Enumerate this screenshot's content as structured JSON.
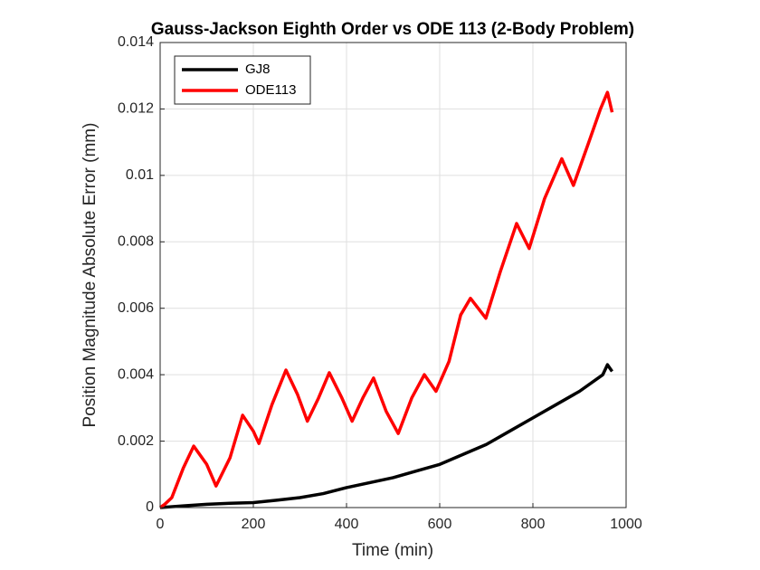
{
  "chart_data": {
    "type": "line",
    "title": "Gauss-Jackson Eighth Order vs ODE 113 (2-Body Problem)",
    "x_label": "Time (min)",
    "y_label": "Position Magnitude Absolute Error (mm)",
    "xlim": [
      0,
      1000
    ],
    "xticks": [
      0,
      200,
      400,
      600,
      800,
      1000
    ],
    "ylim": [
      0,
      0.014
    ],
    "yticks": [
      0,
      0.002,
      0.004,
      0.006,
      0.008,
      0.01,
      0.012,
      0.014
    ],
    "grid": true,
    "legend": "top-left",
    "series": [
      {
        "name": "GJ8",
        "color": "#000000",
        "x": [
          0,
          50,
          100,
          150,
          200,
          250,
          300,
          350,
          400,
          450,
          500,
          550,
          600,
          650,
          700,
          750,
          800,
          850,
          900,
          950,
          960,
          970
        ],
        "values": [
          0,
          5e-05,
          0.0001,
          0.00013,
          0.00015,
          0.00022,
          0.0003,
          0.00042,
          0.0006,
          0.00075,
          0.0009,
          0.0011,
          0.0013,
          0.0016,
          0.0019,
          0.0023,
          0.0027,
          0.0031,
          0.0035,
          0.004,
          0.0043,
          0.0041
        ]
      },
      {
        "name": "ODE113",
        "color": "#ff0000",
        "x": [
          0,
          10,
          25,
          50,
          72,
          100,
          120,
          150,
          177,
          200,
          212,
          240,
          270,
          295,
          316,
          340,
          363,
          390,
          412,
          435,
          458,
          485,
          511,
          540,
          567,
          592,
          620,
          645,
          666,
          699,
          730,
          765,
          792,
          825,
          862,
          887,
          920,
          945,
          960,
          970
        ],
        "values": [
          0,
          0.0001,
          0.0003,
          0.0012,
          0.00185,
          0.0013,
          0.00065,
          0.0015,
          0.00278,
          0.0023,
          0.00193,
          0.0031,
          0.00414,
          0.0034,
          0.0026,
          0.0033,
          0.00406,
          0.0033,
          0.0026,
          0.0033,
          0.0039,
          0.0029,
          0.00223,
          0.0033,
          0.004,
          0.0035,
          0.0044,
          0.0058,
          0.0063,
          0.0057,
          0.0071,
          0.00855,
          0.0078,
          0.0093,
          0.0105,
          0.0097,
          0.011,
          0.012,
          0.0125,
          0.0119
        ]
      }
    ]
  }
}
